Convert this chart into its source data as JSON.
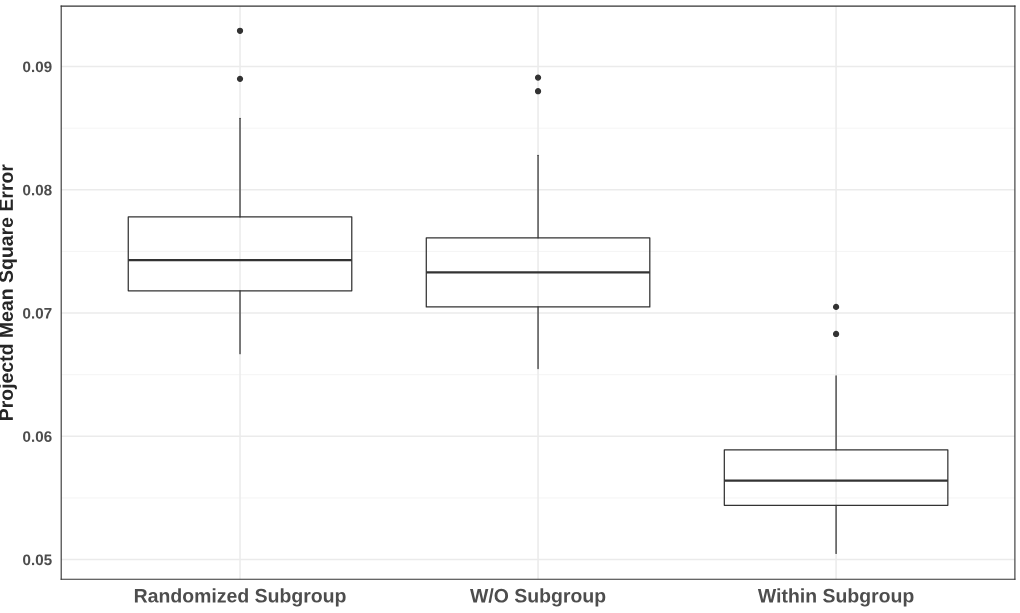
{
  "chart_data": {
    "type": "box",
    "ylabel": "Projectd Mean Square Error",
    "categories": [
      "Randomized Subgroup",
      "W/O Subgroup",
      "Within Subgroup"
    ],
    "boxes": [
      {
        "low": 0.0667,
        "q1": 0.0718,
        "median": 0.0743,
        "q3": 0.0778,
        "high": 0.0858,
        "outliers": [
          0.0929,
          0.089
        ]
      },
      {
        "low": 0.0655,
        "q1": 0.0705,
        "median": 0.0733,
        "q3": 0.0761,
        "high": 0.0828,
        "outliers": [
          0.0891,
          0.088
        ]
      },
      {
        "low": 0.0505,
        "q1": 0.0544,
        "median": 0.0564,
        "q3": 0.0589,
        "high": 0.0649,
        "outliers": [
          0.0705,
          0.0683
        ]
      }
    ],
    "color": "#333333",
    "ylim": [
      0.0484,
      0.0949
    ],
    "yticks": [
      0.05,
      0.06,
      0.07,
      0.08,
      0.09
    ],
    "grid": true
  }
}
